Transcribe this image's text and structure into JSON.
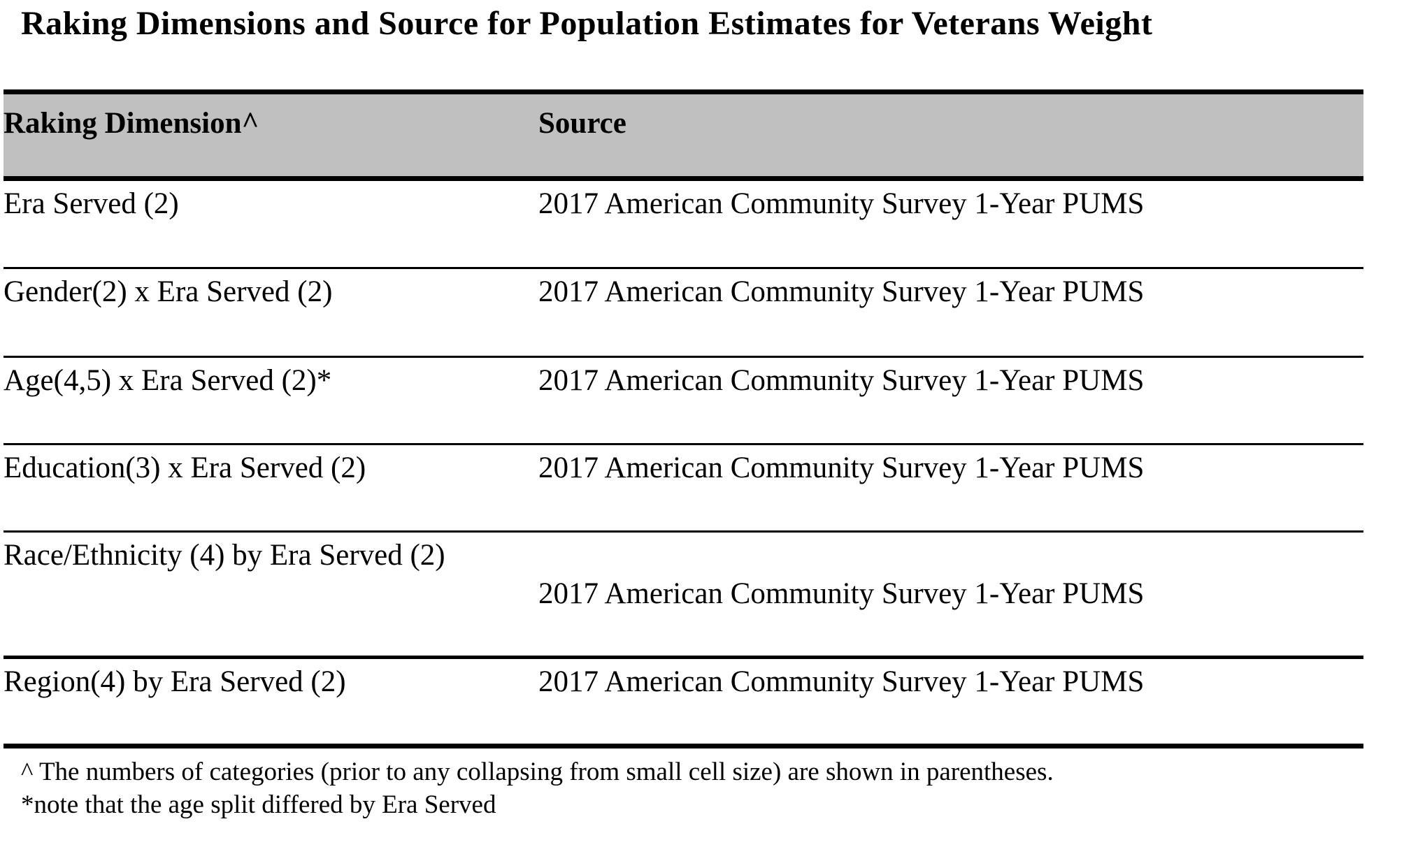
{
  "title": "Raking Dimensions and Source for Population Estimates for Veterans Weight",
  "table": {
    "header_bg": "#c0c0c0",
    "border_color": "#000000",
    "columns": [
      {
        "label": "Raking Dimension^"
      },
      {
        "label": "Source"
      }
    ],
    "rows": [
      {
        "dimension": "Era Served (2)",
        "source": "2017 American Community Survey 1-Year PUMS"
      },
      {
        "dimension": "Gender(2) x Era Served (2)",
        "source": "2017 American Community Survey 1-Year PUMS"
      },
      {
        "dimension": "Age(4,5) x Era Served (2)*",
        "source": "2017 American Community Survey 1-Year PUMS"
      },
      {
        "dimension": "Education(3) x Era Served (2)",
        "source": "2017 American Community Survey 1-Year PUMS"
      },
      {
        "dimension": "Race/Ethnicity (4) by Era Served (2)",
        "source": "2017 American Community Survey 1-Year PUMS"
      },
      {
        "dimension": "Region(4) by Era Served (2)",
        "source": "2017 American Community Survey 1-Year PUMS"
      }
    ]
  },
  "footnotes": [
    "^ The numbers of categories (prior to any collapsing from small cell size) are shown in parentheses.",
    "*note that the age split differed by Era Served"
  ]
}
